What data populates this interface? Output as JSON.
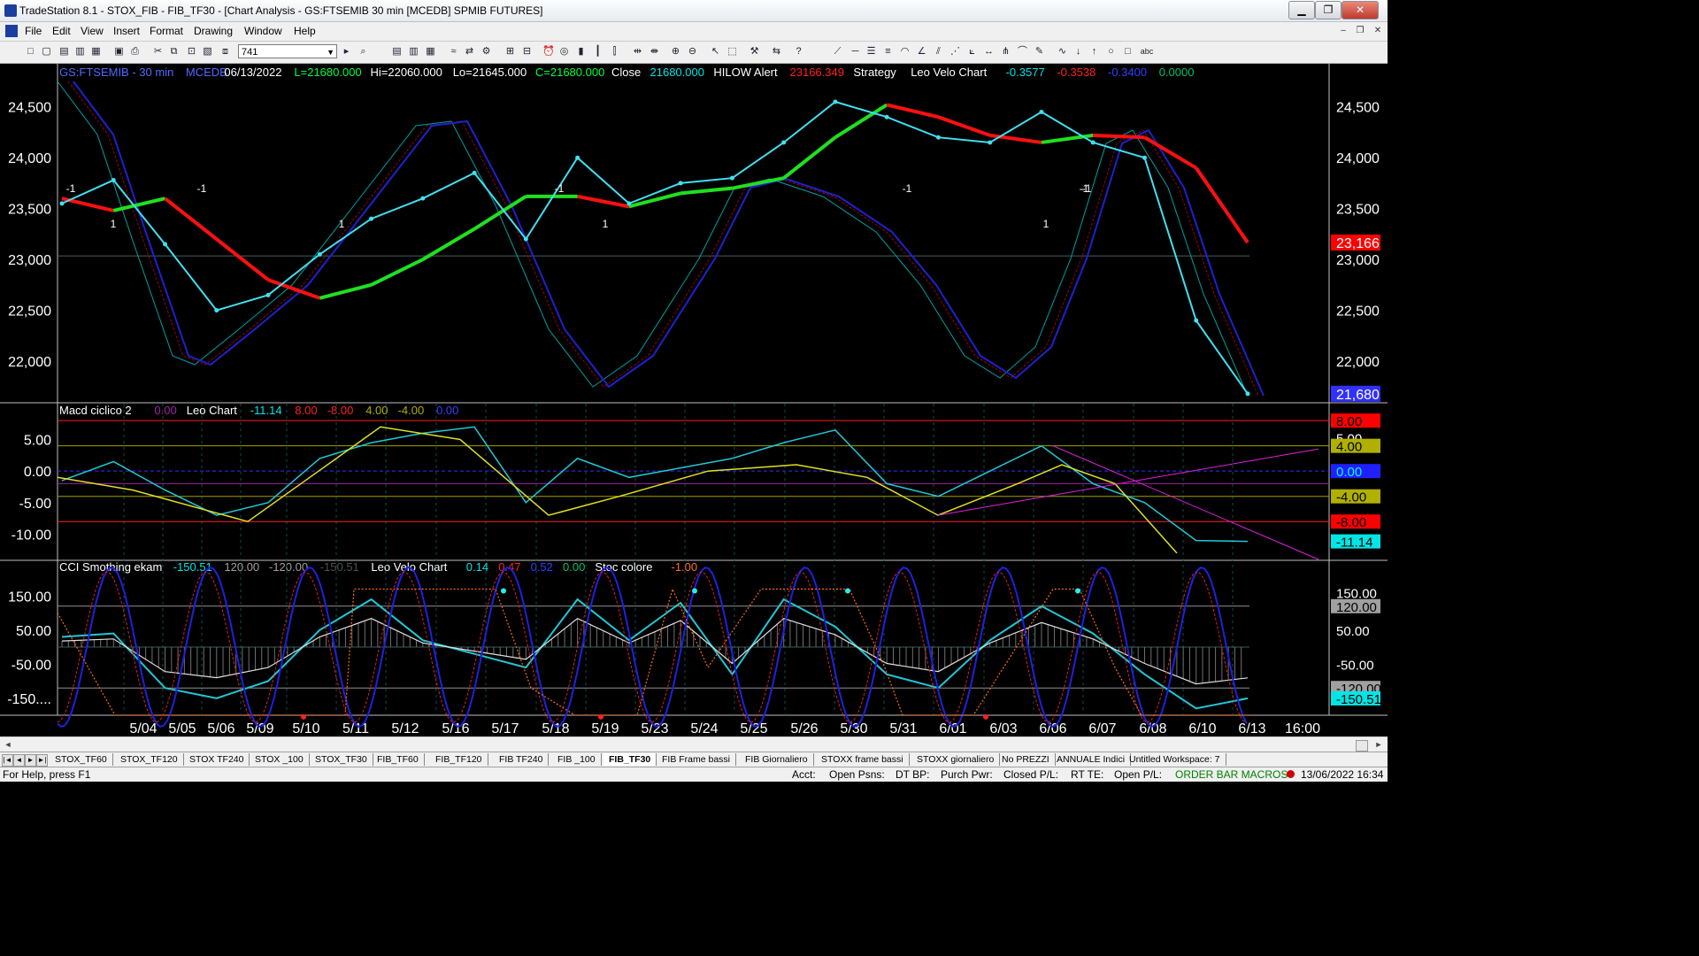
{
  "window": {
    "title": "TradeStation 8.1 - STOX_FIB - FIB_TF30 - [Chart Analysis - GS:FTSEMIB  30 min  [MCEDB] SPMIB FUTURES]",
    "minimize": "▁",
    "restore": "❐",
    "close": "✕"
  },
  "menu": {
    "items": [
      "File",
      "Edit",
      "View",
      "Insert",
      "Format",
      "Drawing",
      "Window",
      "Help"
    ],
    "mdi_min": "–",
    "mdi_restore": "❐",
    "mdi_close": "✕"
  },
  "toolbar": {
    "interval_value": "741"
  },
  "price_panel": {
    "header": [
      {
        "text": "GS:FTSEMIB - 30 min",
        "color": "#4f6bff"
      },
      {
        "text": "MCEDB",
        "color": "#4f6bff"
      },
      {
        "text": "06/13/2022",
        "color": "#ffffff"
      },
      {
        "text": "L=21680.000",
        "color": "#00ff40"
      },
      {
        "text": "Hi=22060.000",
        "color": "#ffffff"
      },
      {
        "text": "Lo=21645.000",
        "color": "#ffffff"
      },
      {
        "text": "C=21680.000",
        "color": "#00ff40"
      },
      {
        "text": "Close",
        "color": "#ffffff"
      },
      {
        "text": "21680.000",
        "color": "#00e5e5"
      },
      {
        "text": "HILOW Alert",
        "color": "#ffffff"
      },
      {
        "text": "23166.349",
        "color": "#ff2020"
      },
      {
        "text": "Strategy",
        "color": "#ffffff"
      },
      {
        "text": "Leo Velo Chart",
        "color": "#ffffff"
      },
      {
        "text": "-0.3577",
        "color": "#00e5e5"
      },
      {
        "text": "-0.3538",
        "color": "#ff2020"
      },
      {
        "text": "-0.3400",
        "color": "#3040ff"
      },
      {
        "text": "0.0000",
        "color": "#00c070"
      }
    ],
    "y_ticks": [
      "24,500",
      "24,000",
      "23,500",
      "23,000",
      "22,500",
      "22,000"
    ],
    "price_labels": [
      {
        "text": "23,166",
        "bg": "#ff0000",
        "color": "#ffffff"
      },
      {
        "text": "21,680",
        "bg": "#3030ff",
        "color": "#ffffff"
      }
    ],
    "signal_marks": [
      "-1",
      "1",
      "-1",
      "1",
      "-1",
      "1",
      "-1",
      "-1",
      "1",
      "-1"
    ]
  },
  "macd_panel": {
    "header": [
      {
        "text": "Macd ciclico 2",
        "color": "#ffffff"
      },
      {
        "text": "0.00",
        "color": "#a020a0"
      },
      {
        "text": "Leo Chart",
        "color": "#ffffff"
      },
      {
        "text": "-11.14",
        "color": "#00e5e5"
      },
      {
        "text": "8.00",
        "color": "#ff2020"
      },
      {
        "text": "-8.00",
        "color": "#ff2020"
      },
      {
        "text": "4.00",
        "color": "#b0b000"
      },
      {
        "text": "-4.00",
        "color": "#b0b000"
      },
      {
        "text": "0.00",
        "color": "#3040ff"
      }
    ],
    "y_ticks": [
      "5.00",
      "0.00",
      "-5.00",
      "-10.00"
    ],
    "value_labels": [
      {
        "text": "8.00",
        "bg": "#ff0000",
        "color": "#000000"
      },
      {
        "text": "5.00",
        "bg": "#000000",
        "color": "#ffffff"
      },
      {
        "text": "4.00",
        "bg": "#b0b000",
        "color": "#000000"
      },
      {
        "text": "0.00",
        "bg": "#2020ff",
        "color": "#00ffff"
      },
      {
        "text": "-4.00",
        "bg": "#b0b000",
        "color": "#000000"
      },
      {
        "text": "-8.00",
        "bg": "#ff0000",
        "color": "#000000"
      },
      {
        "text": "-11.14",
        "bg": "#00e5e5",
        "color": "#000000"
      }
    ]
  },
  "cci_panel": {
    "header": [
      {
        "text": "CCI Smothing ekam",
        "color": "#ffffff"
      },
      {
        "text": "-150.51",
        "color": "#00e5e5"
      },
      {
        "text": "120.00",
        "color": "#a0a0a0"
      },
      {
        "text": "-120.00",
        "color": "#a0a0a0"
      },
      {
        "text": "-150.51",
        "color": "#505050"
      },
      {
        "text": "Leo Velo Chart",
        "color": "#ffffff"
      },
      {
        "text": "0.14",
        "color": "#00e5e5"
      },
      {
        "text": "0.47",
        "color": "#ff2020"
      },
      {
        "text": "0.52",
        "color": "#3040ff"
      },
      {
        "text": "0.00",
        "color": "#00c070"
      },
      {
        "text": "Stoc colore",
        "color": "#ffffff"
      },
      {
        "text": "-1.00",
        "color": "#ff7020"
      }
    ],
    "y_ticks": [
      "150.00",
      "50.00",
      "-50.00",
      "-150...."
    ],
    "value_labels": [
      {
        "text": "150.00",
        "bg": "#000000",
        "color": "#ffffff"
      },
      {
        "text": "120.00",
        "bg": "#a0a0a0",
        "color": "#000000"
      },
      {
        "text": "50.00",
        "bg": "#000000",
        "color": "#ffffff"
      },
      {
        "text": "-50.00",
        "bg": "#000000",
        "color": "#ffffff"
      },
      {
        "text": "-120.00",
        "bg": "#a0a0a0",
        "color": "#000000"
      },
      {
        "text": "-150.51",
        "bg": "#00e5e5",
        "color": "#000000"
      }
    ]
  },
  "x_axis": {
    "labels": [
      "5/04",
      "5/05",
      "5/06",
      "5/09",
      "5/10",
      "5/11",
      "5/12",
      "5/16",
      "5/17",
      "5/18",
      "5/19",
      "5/23",
      "5/24",
      "5/25",
      "5/26",
      "5/30",
      "5/31",
      "6/01",
      "6/03",
      "6/06",
      "6/07",
      "6/08",
      "6/10",
      "6/13",
      "16:00"
    ]
  },
  "workspace_tabs": {
    "items": [
      "STOX_TF60",
      "STOX_TF120",
      "STOX TF240",
      "STOX _100",
      "STOX_TF30",
      "FIB_TF60",
      "FIB_TF120",
      "FIB TF240",
      "FIB _100",
      "FIB_TF30",
      "FIB Frame bassi",
      "FIB Giornaliero",
      "STOXX frame bassi",
      "STOXX giornaliero",
      "No PREZZI",
      "ANNUALE Indici",
      "Untitled Workspace: 7"
    ],
    "active_index": 9
  },
  "statusbar": {
    "help": "For Help, press F1",
    "acct": "Acct:",
    "open_psns": "Open Psns:",
    "dt_bp": "DT BP:",
    "purch_pwr": "Purch Pwr:",
    "closed_pl": "Closed P/L:",
    "rt_te": "RT TE:",
    "open_pl": "Open P/L:",
    "macros": "ORDER BAR  MACROS",
    "datetime": "13/06/2022 16:34"
  },
  "chart_data": {
    "type": "line",
    "x": [
      "5/04",
      "5/05",
      "5/06",
      "5/09",
      "5/10",
      "5/11",
      "5/12",
      "5/16",
      "5/17",
      "5/18",
      "5/19",
      "5/23",
      "5/24",
      "5/25",
      "5/26",
      "5/30",
      "5/31",
      "6/01",
      "6/03",
      "6/06",
      "6/07",
      "6/08",
      "6/10",
      "6/13"
    ],
    "ylim": [
      21600,
      24750
    ],
    "series": [
      {
        "name": "GS:FTSEMIB - 30 min",
        "values": [
          23550,
          23780,
          23150,
          22500,
          22650,
          23050,
          23400,
          23600,
          23850,
          23200,
          24000,
          23550,
          23750,
          23800,
          24150,
          24550,
          24400,
          24200,
          24150,
          24450,
          24150,
          24000,
          22400,
          21680
        ]
      },
      {
        "name": "HILOW Alert",
        "values": [
          23600,
          23480,
          23600,
          23200,
          22800,
          22620,
          22750,
          23000,
          23300,
          23620,
          23620,
          23520,
          23650,
          23700,
          23800,
          24200,
          24520,
          24400,
          24220,
          24150,
          24220,
          24200,
          23900,
          23166
        ]
      }
    ],
    "macd": {
      "ylim": [
        -14,
        9
      ],
      "values": [
        -1.5,
        1.5,
        -3,
        -7,
        -5,
        2,
        4.5,
        6,
        7,
        -5,
        2,
        -1,
        0.5,
        2,
        4.5,
        6.5,
        -2,
        -4,
        0,
        4,
        -2,
        -5,
        -11,
        -11.14
      ]
    },
    "cci": {
      "ylim": [
        -200,
        200
      ],
      "values": [
        30,
        40,
        -120,
        -150,
        -100,
        50,
        140,
        20,
        -20,
        -60,
        140,
        20,
        130,
        -80,
        140,
        60,
        -80,
        -120,
        20,
        120,
        40,
        -80,
        -180,
        -150.51
      ]
    }
  }
}
